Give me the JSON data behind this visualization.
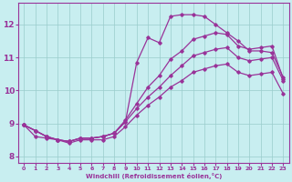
{
  "xlabel": "Windchill (Refroidissement éolien,°C)",
  "xlim": [
    -0.5,
    23.5
  ],
  "ylim": [
    7.8,
    12.65
  ],
  "xticks": [
    0,
    1,
    2,
    3,
    4,
    5,
    6,
    7,
    8,
    9,
    10,
    11,
    12,
    13,
    14,
    15,
    16,
    17,
    18,
    19,
    20,
    21,
    22,
    23
  ],
  "yticks": [
    8,
    9,
    10,
    11,
    12
  ],
  "bg_color": "#c8eef0",
  "line_color": "#993399",
  "grid_color": "#99cccc",
  "line1_x": [
    0,
    1,
    2,
    3,
    4,
    5,
    6,
    7,
    8,
    9,
    10,
    11,
    12,
    13,
    14,
    15,
    16,
    17,
    18,
    19,
    20,
    21,
    22,
    23
  ],
  "line1_y": [
    8.95,
    8.78,
    8.6,
    8.5,
    8.45,
    8.55,
    8.55,
    8.6,
    8.7,
    9.05,
    10.85,
    11.6,
    11.45,
    12.25,
    12.3,
    12.3,
    12.25,
    12.0,
    11.75,
    11.5,
    11.2,
    11.2,
    11.15,
    10.4
  ],
  "line2_x": [
    0,
    1,
    2,
    3,
    4,
    5,
    6,
    7,
    8,
    9,
    10,
    11,
    12,
    13,
    14,
    15,
    16,
    17,
    18,
    19,
    20,
    21,
    22,
    23
  ],
  "line2_y": [
    8.95,
    8.78,
    8.6,
    8.5,
    8.45,
    8.55,
    8.55,
    8.6,
    8.7,
    9.1,
    9.6,
    10.1,
    10.45,
    10.95,
    11.2,
    11.55,
    11.65,
    11.75,
    11.7,
    11.35,
    11.25,
    11.3,
    11.35,
    10.35
  ],
  "line3_x": [
    0,
    1,
    2,
    3,
    4,
    5,
    6,
    7,
    8,
    9,
    10,
    11,
    12,
    13,
    14,
    15,
    16,
    17,
    18,
    19,
    20,
    21,
    22,
    23
  ],
  "line3_y": [
    8.95,
    8.78,
    8.6,
    8.5,
    8.45,
    8.55,
    8.55,
    8.6,
    8.7,
    9.05,
    9.45,
    9.8,
    10.1,
    10.45,
    10.75,
    11.05,
    11.15,
    11.25,
    11.3,
    11.0,
    10.9,
    10.95,
    11.0,
    10.3
  ],
  "line4_x": [
    0,
    1,
    2,
    3,
    4,
    5,
    6,
    7,
    8,
    9,
    10,
    11,
    12,
    13,
    14,
    15,
    16,
    17,
    18,
    19,
    20,
    21,
    22,
    23
  ],
  "line4_y": [
    8.95,
    8.6,
    8.55,
    8.5,
    8.4,
    8.5,
    8.5,
    8.5,
    8.6,
    8.9,
    9.25,
    9.55,
    9.8,
    10.1,
    10.3,
    10.55,
    10.65,
    10.75,
    10.8,
    10.55,
    10.45,
    10.5,
    10.55,
    9.9
  ]
}
